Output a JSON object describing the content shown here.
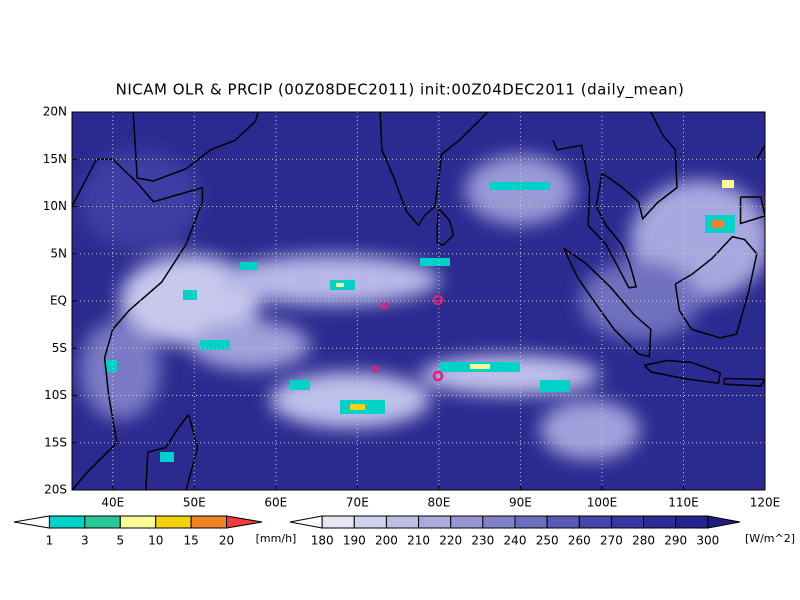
{
  "map": {
    "title": "NICAM OLR & PRCIP (00Z08DEC2011) init:00Z04DEC2011 (daily_mean)",
    "xlim": [
      35,
      120
    ],
    "ylim": [
      -20,
      20
    ],
    "lon_ticks": [
      {
        "value": 40,
        "label": "40E"
      },
      {
        "value": 50,
        "label": "50E"
      },
      {
        "value": 60,
        "label": "60E"
      },
      {
        "value": 70,
        "label": "70E"
      },
      {
        "value": 80,
        "label": "80E"
      },
      {
        "value": 90,
        "label": "90E"
      },
      {
        "value": 100,
        "label": "100E"
      },
      {
        "value": 110,
        "label": "110E"
      },
      {
        "value": 120,
        "label": "120E"
      }
    ],
    "lat_ticks": [
      {
        "value": 20,
        "label": "20N"
      },
      {
        "value": 15,
        "label": "15N"
      },
      {
        "value": 10,
        "label": "10N"
      },
      {
        "value": 5,
        "label": "5N"
      },
      {
        "value": 0,
        "label": "EQ"
      },
      {
        "value": -5,
        "label": "5S"
      },
      {
        "value": -10,
        "label": "10S"
      },
      {
        "value": -15,
        "label": "15S"
      },
      {
        "value": -20,
        "label": "20S"
      }
    ],
    "grid": true
  },
  "precip_bar": {
    "levels": [
      1,
      3,
      5,
      10,
      15,
      20
    ],
    "unit": "[mm/h]",
    "colors": [
      "#ffffff",
      "#00d2c8",
      "#28c896",
      "#fafa96",
      "#f5d20f",
      "#f08228",
      "#f03c3c"
    ]
  },
  "olr_bar": {
    "levels": [
      180,
      190,
      200,
      210,
      220,
      230,
      240,
      250,
      260,
      270,
      280,
      290,
      300
    ],
    "unit": "[W/m^2]",
    "colors": [
      "#ffffff",
      "#e6e6f3",
      "#d2d2ec",
      "#bebee4",
      "#aaaadc",
      "#9696d2",
      "#8282c8",
      "#6e6ebe",
      "#5a5ab4",
      "#4646aa",
      "#3737a0",
      "#2d2d96",
      "#23238c",
      "#1e1e7a"
    ]
  }
}
